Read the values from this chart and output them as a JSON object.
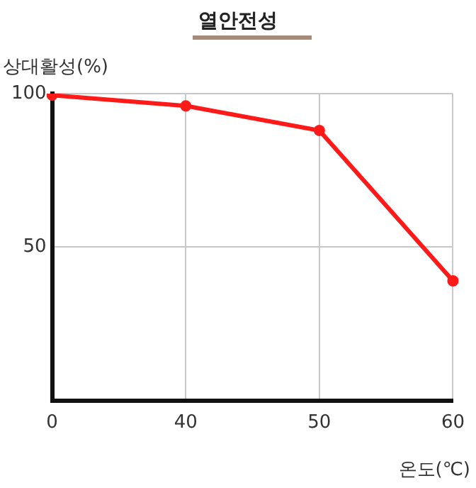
{
  "chart_data": {
    "type": "line",
    "title": "열안전성",
    "ylabel": "상대활성(%)",
    "xlabel": "온도(℃)",
    "categories": [
      "0",
      "40",
      "50",
      "60"
    ],
    "series": [
      {
        "color": "#ff1a1a",
        "values": [
          99.5,
          96,
          88,
          39
        ]
      }
    ],
    "ylim": [
      0,
      100
    ],
    "yticks": [
      50,
      100
    ],
    "grid": true,
    "legend": false,
    "marker": "circle",
    "line_style": "solid"
  }
}
